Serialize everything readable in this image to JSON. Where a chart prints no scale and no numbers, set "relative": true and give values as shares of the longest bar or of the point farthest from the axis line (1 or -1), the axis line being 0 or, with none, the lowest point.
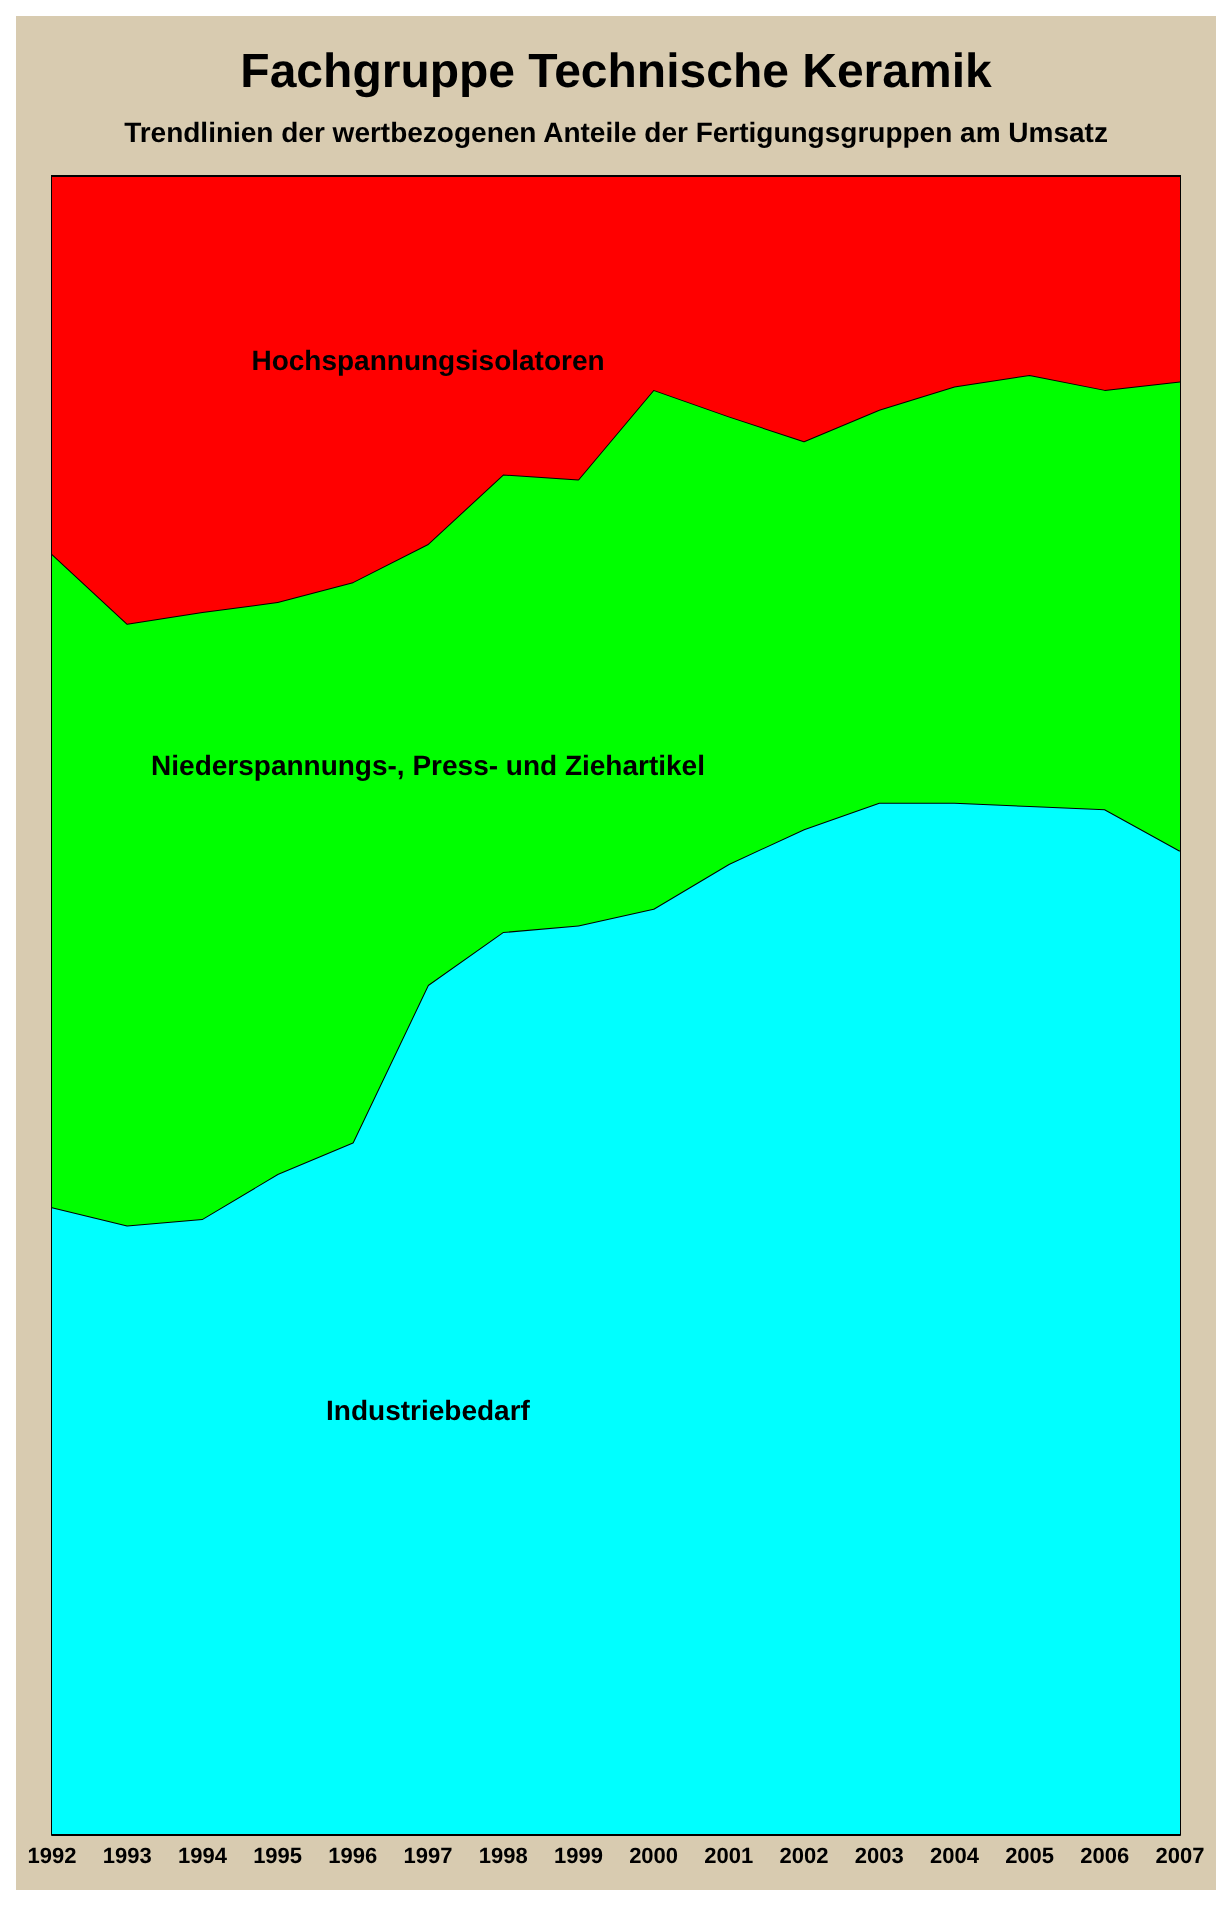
{
  "chart_data": {
    "type": "area",
    "title": "Fachgruppe Technische Keramik",
    "subtitle": "Trendlinien der wertbezogenen Anteile der Fertigungsgruppen am Umsatz",
    "relative": true,
    "stacked": true,
    "categories": [
      "1992",
      "1993",
      "1994",
      "1995",
      "1996",
      "1997",
      "1998",
      "1999",
      "2000",
      "2001",
      "2002",
      "2003",
      "2004",
      "2005",
      "2006",
      "2007"
    ],
    "series": [
      {
        "name": "Industriebedarf",
        "color": "#00ffff",
        "values": [
          0.378,
          0.367,
          0.371,
          0.398,
          0.417,
          0.512,
          0.544,
          0.548,
          0.558,
          0.585,
          0.606,
          0.622,
          0.622,
          0.62,
          0.618,
          0.593
        ]
      },
      {
        "name": "Niederspannungs-, Press- und Ziehartikel",
        "color": "#00ff00",
        "values": [
          0.394,
          0.363,
          0.366,
          0.345,
          0.338,
          0.266,
          0.276,
          0.269,
          0.313,
          0.27,
          0.234,
          0.237,
          0.251,
          0.26,
          0.253,
          0.283
        ]
      },
      {
        "name": "Hochspannungsisolatoren",
        "color": "#ff0000",
        "values": [
          0.228,
          0.27,
          0.263,
          0.257,
          0.245,
          0.222,
          0.18,
          0.183,
          0.129,
          0.145,
          0.16,
          0.141,
          0.127,
          0.12,
          0.129,
          0.124
        ]
      }
    ]
  }
}
